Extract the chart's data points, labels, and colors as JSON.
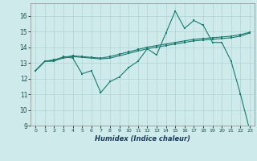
{
  "xlabel": "Humidex (Indice chaleur)",
  "background_color": "#ceeaea",
  "grid_color": "#b0d4d4",
  "line_color": "#1a7a6e",
  "xlim": [
    -0.5,
    23.5
  ],
  "ylim": [
    9,
    16.8
  ],
  "yticks": [
    9,
    10,
    11,
    12,
    13,
    14,
    15,
    16
  ],
  "xticks": [
    0,
    1,
    2,
    3,
    4,
    5,
    6,
    7,
    8,
    9,
    10,
    11,
    12,
    13,
    14,
    15,
    16,
    17,
    18,
    19,
    20,
    21,
    22,
    23
  ],
  "line1": {
    "x": [
      0,
      1,
      2,
      3,
      4,
      5,
      6,
      7,
      8,
      9,
      10,
      11,
      12,
      13,
      14,
      15,
      16,
      17,
      18,
      19,
      20,
      21,
      22,
      23
    ],
    "y": [
      12.5,
      13.1,
      13.1,
      13.4,
      13.3,
      12.3,
      12.5,
      11.1,
      11.8,
      12.1,
      12.7,
      13.1,
      13.9,
      13.5,
      14.9,
      16.3,
      15.2,
      15.7,
      15.4,
      14.3,
      14.3,
      13.1,
      11.0,
      8.7
    ]
  },
  "line2": {
    "x": [
      0,
      1,
      2,
      3,
      4,
      5,
      6,
      7,
      8,
      9,
      10,
      11,
      12,
      13,
      14,
      15,
      16,
      17,
      18,
      19,
      20,
      21,
      22,
      23
    ],
    "y": [
      12.5,
      13.1,
      13.2,
      13.35,
      13.45,
      13.4,
      13.35,
      13.3,
      13.4,
      13.55,
      13.7,
      13.85,
      14.0,
      14.1,
      14.2,
      14.3,
      14.4,
      14.5,
      14.55,
      14.6,
      14.65,
      14.7,
      14.8,
      14.95
    ]
  },
  "line3": {
    "x": [
      0,
      1,
      2,
      3,
      4,
      5,
      6,
      7,
      8,
      9,
      10,
      11,
      12,
      13,
      14,
      15,
      16,
      17,
      18,
      19,
      20,
      21,
      22,
      23
    ],
    "y": [
      12.5,
      13.1,
      13.15,
      13.3,
      13.4,
      13.35,
      13.3,
      13.25,
      13.3,
      13.45,
      13.6,
      13.75,
      13.9,
      14.0,
      14.1,
      14.2,
      14.3,
      14.4,
      14.45,
      14.5,
      14.55,
      14.6,
      14.7,
      14.9
    ]
  },
  "marker_size": 2.0,
  "line_width": 0.8
}
